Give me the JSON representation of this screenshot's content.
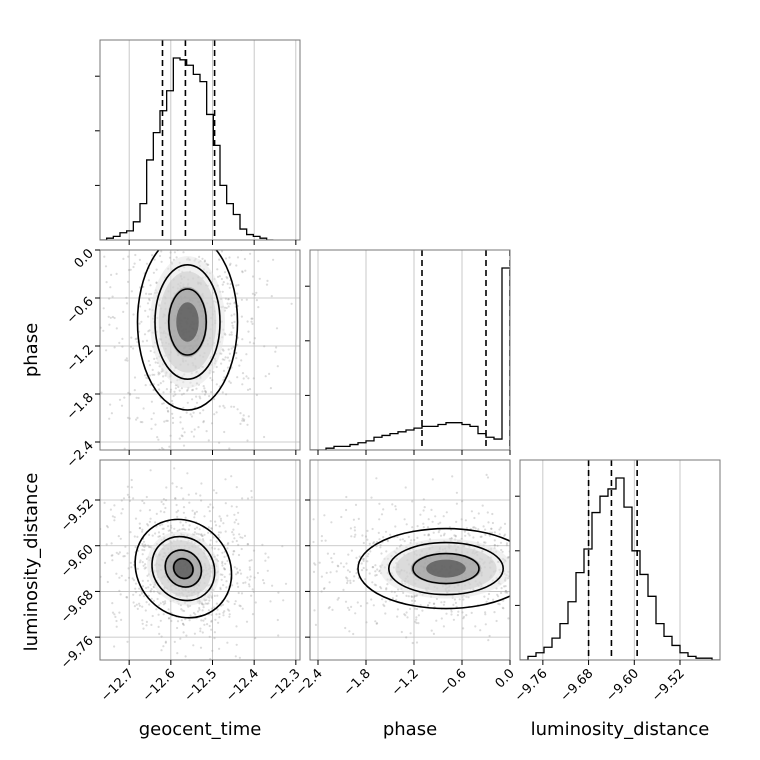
{
  "chart_data": {
    "type": "corner",
    "parameters": [
      "geocent_time",
      "phase",
      "luminosity_distance"
    ],
    "grid": true,
    "ticks": {
      "geocent_time": {
        "values": [
          -12.7,
          -12.6,
          -12.5,
          -12.4,
          -12.3
        ],
        "labels": [
          "−12.7",
          "−12.6",
          "−12.5",
          "−12.4",
          "−12.3"
        ],
        "range": [
          -12.77,
          -12.29
        ]
      },
      "phase": {
        "values": [
          -2.4,
          -1.8,
          -1.2,
          -0.6,
          0.0
        ],
        "labels": [
          "−2.4",
          "−1.8",
          "−1.2",
          "−0.6",
          "0.0"
        ],
        "range": [
          -2.5,
          0.0
        ]
      },
      "luminosity_distance": {
        "values": [
          -9.76,
          -9.68,
          -9.6,
          -9.52
        ],
        "labels": [
          "−9.76",
          "−9.68",
          "−9.60",
          "−9.52"
        ],
        "range": [
          -9.8,
          -9.45
        ]
      }
    },
    "quantiles": {
      "geocent_time": [
        -12.62,
        -12.565,
        -12.495
      ],
      "phase": [
        -1.1,
        -0.3,
        0.0
      ],
      "luminosity_distance": [
        -9.68,
        -9.64,
        -9.595
      ]
    },
    "histograms": {
      "geocent_time": {
        "bins": [
          -12.77,
          -12.754,
          -12.738,
          -12.722,
          -12.706,
          -12.69,
          -12.674,
          -12.658,
          -12.642,
          -12.626,
          -12.61,
          -12.594,
          -12.578,
          -12.562,
          -12.546,
          -12.53,
          -12.514,
          -12.498,
          -12.482,
          -12.466,
          -12.45,
          -12.434,
          -12.418,
          -12.402,
          -12.386,
          -12.37,
          -12.354
        ],
        "counts": [
          0.0,
          0.01,
          0.02,
          0.04,
          0.05,
          0.1,
          0.2,
          0.44,
          0.59,
          0.71,
          0.82,
          1.0,
          0.99,
          0.96,
          0.91,
          0.87,
          0.69,
          0.52,
          0.3,
          0.2,
          0.14,
          0.06,
          0.03,
          0.02,
          0.01,
          0.0
        ]
      },
      "phase": {
        "bins": [
          -2.5,
          -2.4,
          -2.3,
          -2.2,
          -2.1,
          -2.0,
          -1.9,
          -1.8,
          -1.7,
          -1.6,
          -1.5,
          -1.4,
          -1.3,
          -1.2,
          -1.1,
          -1.0,
          -0.9,
          -0.8,
          -0.7,
          -0.6,
          -0.5,
          -0.4,
          -0.3,
          -0.2,
          -0.1,
          0.0
        ],
        "counts": [
          0.0,
          0.0,
          0.01,
          0.02,
          0.02,
          0.03,
          0.04,
          0.05,
          0.07,
          0.08,
          0.09,
          0.1,
          0.11,
          0.12,
          0.13,
          0.13,
          0.14,
          0.15,
          0.15,
          0.14,
          0.13,
          0.09,
          0.07,
          0.06,
          1.0
        ]
      },
      "luminosity_distance": {
        "bins": [
          -9.8,
          -9.786,
          -9.772,
          -9.758,
          -9.744,
          -9.73,
          -9.716,
          -9.702,
          -9.688,
          -9.674,
          -9.66,
          -9.646,
          -9.632,
          -9.618,
          -9.604,
          -9.59,
          -9.576,
          -9.562,
          -9.548,
          -9.534,
          -9.52,
          -9.506,
          -9.492,
          -9.478,
          -9.464,
          -9.45
        ],
        "counts": [
          0.0,
          0.02,
          0.04,
          0.07,
          0.12,
          0.2,
          0.32,
          0.48,
          0.61,
          0.81,
          0.9,
          0.94,
          1.0,
          0.84,
          0.6,
          0.47,
          0.35,
          0.2,
          0.13,
          0.08,
          0.04,
          0.02,
          0.01,
          0.01,
          0.0
        ]
      }
    },
    "joint": {
      "geocent_time__phase": {
        "mean": [
          -12.56,
          -0.9
        ],
        "spread": [
          0.06,
          0.55
        ],
        "contours_drawn": 3
      },
      "geocent_time__luminosity_distance": {
        "mean": [
          -12.57,
          -9.64
        ],
        "spread": [
          0.055,
          0.045
        ],
        "contours_drawn": 4
      },
      "phase__luminosity_distance": {
        "mean": [
          -0.8,
          -9.64
        ],
        "spread": [
          0.55,
          0.035
        ],
        "contours_drawn": 3
      }
    }
  }
}
